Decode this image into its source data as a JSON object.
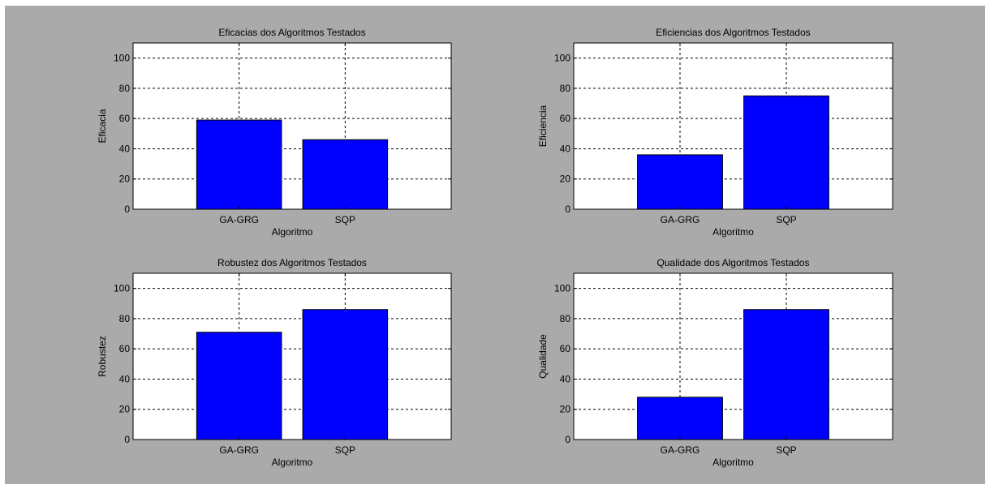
{
  "chart_data": [
    {
      "type": "bar",
      "title": "Eficacias dos Algoritmos Testados",
      "xlabel": "Algoritmo",
      "ylabel": "Eficacia",
      "categories": [
        "GA-GRG",
        "SQP"
      ],
      "values": [
        59,
        46
      ],
      "ylim": [
        0,
        110
      ],
      "yticks": [
        0,
        20,
        40,
        60,
        80,
        100
      ],
      "grid": true,
      "color": "#0000ff"
    },
    {
      "type": "bar",
      "title": "Eficiencias dos Algoritmos Testados",
      "xlabel": "Algoritmo",
      "ylabel": "Eficiencia",
      "categories": [
        "GA-GRG",
        "SQP"
      ],
      "values": [
        36,
        75
      ],
      "ylim": [
        0,
        110
      ],
      "yticks": [
        0,
        20,
        40,
        60,
        80,
        100
      ],
      "grid": true,
      "color": "#0000ff"
    },
    {
      "type": "bar",
      "title": "Robustez dos Algoritmos Testados",
      "xlabel": "Algoritmo",
      "ylabel": "Robustez",
      "categories": [
        "GA-GRG",
        "SQP"
      ],
      "values": [
        71,
        86
      ],
      "ylim": [
        0,
        110
      ],
      "yticks": [
        0,
        20,
        40,
        60,
        80,
        100
      ],
      "grid": true,
      "color": "#0000ff"
    },
    {
      "type": "bar",
      "title": "Qualidade dos Algoritmos Testados",
      "xlabel": "Algoritmo",
      "ylabel": "Qualidade",
      "categories": [
        "GA-GRG",
        "SQP"
      ],
      "values": [
        28,
        86
      ],
      "ylim": [
        0,
        110
      ],
      "yticks": [
        0,
        20,
        40,
        60,
        80,
        100
      ],
      "grid": true,
      "color": "#0000ff"
    }
  ]
}
